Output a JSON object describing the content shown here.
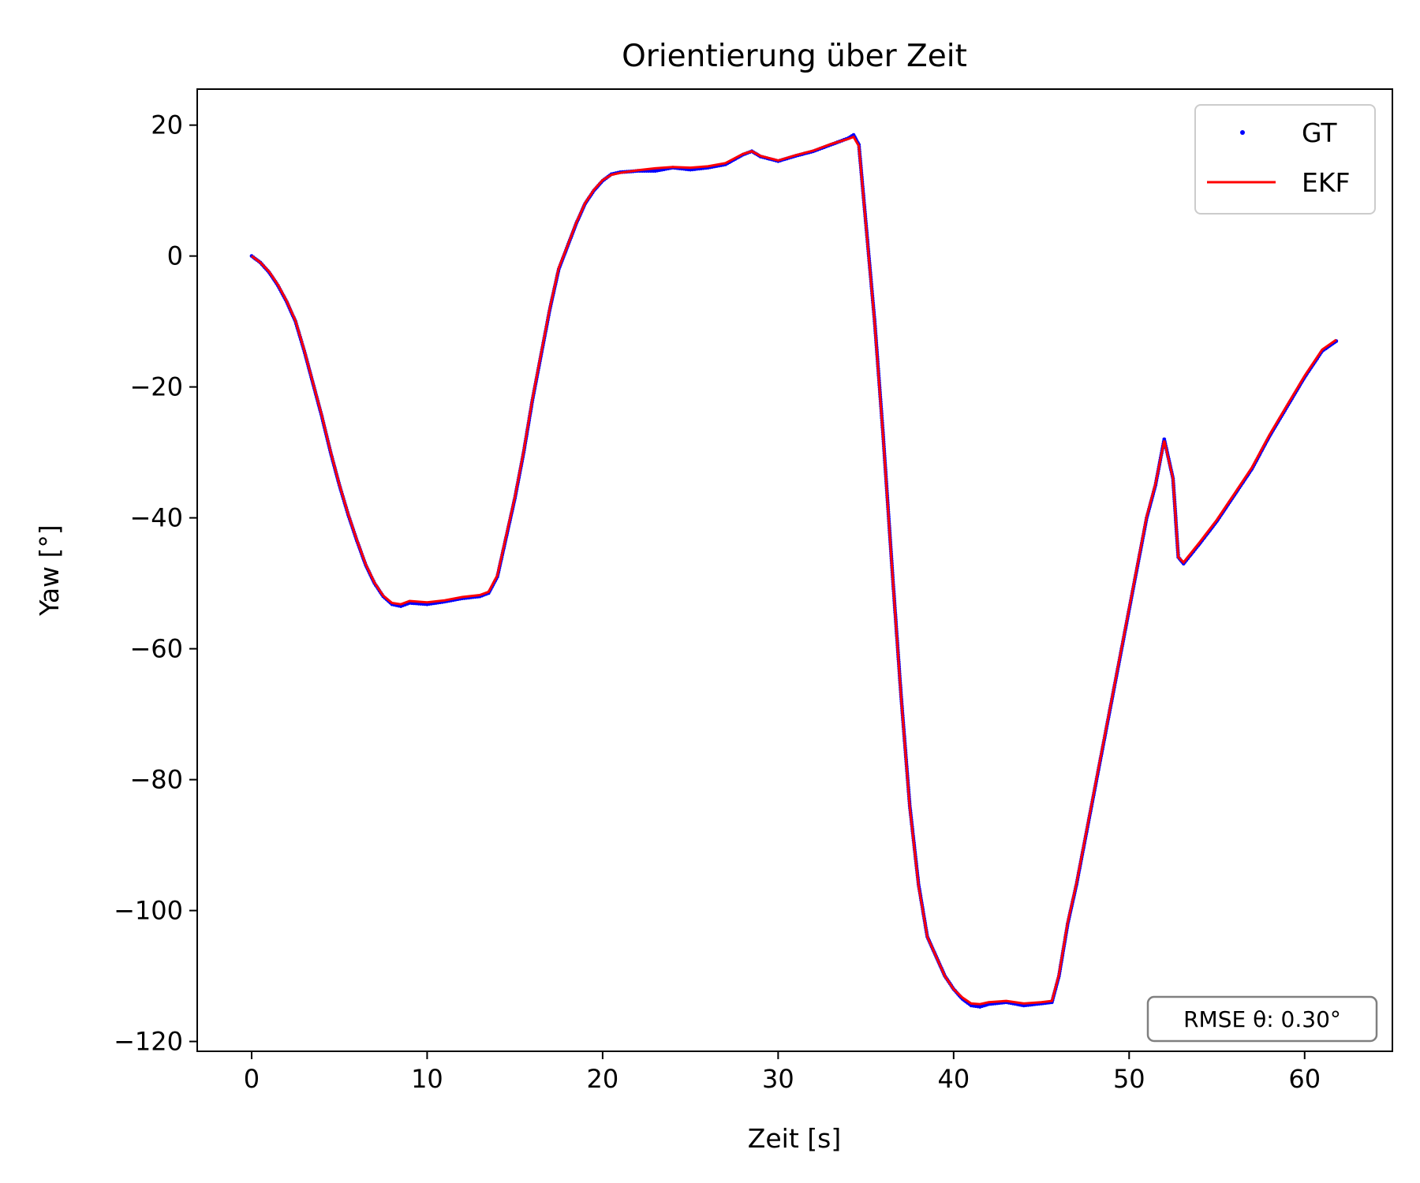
{
  "chart_data": {
    "type": "line",
    "title": "Orientierung über Zeit",
    "xlabel": "Zeit [s]",
    "ylabel": "Yaw [°]",
    "xlim": [
      -3.1,
      65
    ],
    "ylim": [
      -121.5,
      25.5
    ],
    "xticks": [
      0,
      10,
      20,
      30,
      40,
      50,
      60
    ],
    "yticks": [
      20,
      0,
      -20,
      -40,
      -60,
      -80,
      -100,
      -120
    ],
    "xtick_labels": [
      "0",
      "10",
      "20",
      "30",
      "40",
      "50",
      "60"
    ],
    "ytick_labels": [
      "20",
      "0",
      "−20",
      "−40",
      "−60",
      "−80",
      "−100",
      "−120"
    ],
    "grid": false,
    "legend_position": "top-right",
    "series": [
      {
        "name": "GT",
        "style": "points",
        "color": "#0000ff",
        "x": [
          0,
          0.5,
          1,
          1.5,
          2,
          2.5,
          3,
          3.5,
          4,
          4.5,
          5,
          5.5,
          6,
          6.5,
          7,
          7.5,
          8,
          8.5,
          9,
          10,
          11,
          12,
          13,
          13.5,
          14,
          14.5,
          15,
          15.5,
          16,
          16.5,
          17,
          17.5,
          18,
          18.5,
          19,
          19.5,
          20,
          20.5,
          21,
          22,
          23,
          24,
          25,
          26,
          27,
          28,
          28.5,
          29,
          30,
          31,
          32,
          33,
          34,
          34.3,
          34.6,
          35,
          35.5,
          36,
          36.5,
          37,
          37.5,
          38,
          38.5,
          39,
          39.5,
          40,
          40.5,
          41,
          41.5,
          42,
          43,
          44,
          45,
          45.6,
          46,
          46.5,
          47,
          47.5,
          48,
          48.5,
          49,
          49.5,
          50,
          50.5,
          51,
          51.5,
          52,
          52.5,
          52.8,
          53.1,
          54,
          55,
          56,
          57,
          58,
          59,
          60,
          61,
          61.8
        ],
        "y": [
          0,
          -1,
          -2.5,
          -4.5,
          -7,
          -10,
          -14.5,
          -19.5,
          -24.5,
          -30,
          -35,
          -39.5,
          -43.5,
          -47.2,
          -50,
          -52,
          -53.2,
          -53.5,
          -53,
          -53.2,
          -52.8,
          -52.3,
          -52,
          -51.5,
          -49,
          -43,
          -37,
          -30,
          -22,
          -15,
          -8,
          -2,
          1.5,
          5,
          8,
          10,
          11.5,
          12.5,
          12.8,
          13,
          13,
          13.5,
          13.2,
          13.5,
          14,
          15.5,
          16,
          15.2,
          14.5,
          15.3,
          16,
          17,
          18,
          18.5,
          17,
          5,
          -10,
          -28,
          -48,
          -67,
          -84,
          -96,
          -104,
          -107,
          -110,
          -112,
          -113.5,
          -114.5,
          -114.7,
          -114.3,
          -114,
          -114.5,
          -114.2,
          -114,
          -110,
          -102,
          -96,
          -89,
          -82,
          -75,
          -68,
          -61,
          -54,
          -47,
          -40,
          -35,
          -28,
          -34,
          -46,
          -47,
          -44,
          -40.5,
          -36.5,
          -32.5,
          -27.5,
          -23,
          -18.5,
          -14.5,
          -13
        ]
      },
      {
        "name": "EKF",
        "style": "line",
        "color": "#ff0000",
        "x": [
          0,
          0.5,
          1,
          1.5,
          2,
          2.5,
          3,
          3.5,
          4,
          4.5,
          5,
          5.5,
          6,
          6.5,
          7,
          7.5,
          8,
          8.5,
          9,
          10,
          11,
          12,
          13,
          13.5,
          14,
          14.5,
          15,
          15.5,
          16,
          16.5,
          17,
          17.5,
          18,
          18.5,
          19,
          19.5,
          20,
          20.5,
          21,
          22,
          23,
          24,
          25,
          26,
          27,
          28,
          28.5,
          29,
          30,
          31,
          32,
          33,
          34,
          34.3,
          34.6,
          35,
          35.5,
          36,
          36.5,
          37,
          37.5,
          38,
          38.5,
          39,
          39.5,
          40,
          40.5,
          41,
          41.5,
          42,
          43,
          44,
          45,
          45.6,
          46,
          46.5,
          47,
          47.5,
          48,
          48.5,
          49,
          49.5,
          50,
          50.5,
          51,
          51.5,
          52,
          52.5,
          52.8,
          53.1,
          54,
          55,
          56,
          57,
          58,
          59,
          60,
          61,
          61.8
        ],
        "y": [
          0,
          -1,
          -2.4,
          -4.4,
          -6.9,
          -9.9,
          -14.4,
          -19.4,
          -24.4,
          -29.9,
          -34.9,
          -39.4,
          -43.4,
          -47.1,
          -49.9,
          -51.9,
          -53,
          -53.2,
          -52.7,
          -52.9,
          -52.6,
          -52.1,
          -51.8,
          -51.3,
          -48.8,
          -42.8,
          -36.8,
          -29.8,
          -21.8,
          -14.8,
          -7.8,
          -1.8,
          1.6,
          5.1,
          8.1,
          10.1,
          11.6,
          12.4,
          12.7,
          13.1,
          13.4,
          13.6,
          13.5,
          13.7,
          14.2,
          15.6,
          16,
          15.3,
          14.6,
          15.4,
          16.1,
          17.1,
          17.9,
          18.2,
          16.8,
          4.8,
          -10.2,
          -28.2,
          -48.2,
          -67.2,
          -84.2,
          -96.2,
          -104,
          -107,
          -110,
          -112,
          -113.3,
          -114.2,
          -114.3,
          -114,
          -113.8,
          -114.2,
          -114,
          -113.8,
          -109.8,
          -101.8,
          -95.8,
          -88.8,
          -81.8,
          -74.8,
          -67.8,
          -60.8,
          -53.8,
          -46.8,
          -39.8,
          -34.8,
          -28.2,
          -34,
          -46,
          -46.8,
          -43.8,
          -40.3,
          -36.3,
          -32.3,
          -27.3,
          -22.8,
          -18.3,
          -14.3,
          -12.8
        ]
      }
    ],
    "legend": [
      {
        "label": "GT",
        "marker": "point",
        "color": "#0000ff"
      },
      {
        "label": "EKF",
        "marker": "line",
        "color": "#ff0000"
      }
    ],
    "annotation": {
      "text": "RMSE θ: 0.30°",
      "position": "bottom-right"
    }
  }
}
